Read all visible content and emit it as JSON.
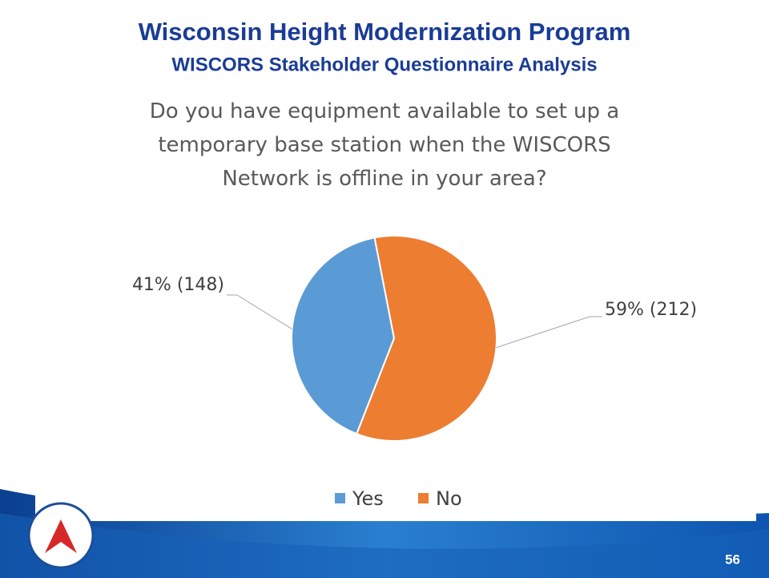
{
  "slide": {
    "title": "Wisconsin Height Modernization Program",
    "subtitle": "WISCORS Stakeholder Questionnaire Analysis",
    "page_number": "56"
  },
  "chart_data": {
    "type": "pie",
    "title": "Do you have equipment available to set up a temporary base station when the WISCORS Network is offline in your area?",
    "categories": [
      "Yes",
      "No"
    ],
    "values": [
      41,
      59
    ],
    "value_labels": [
      "41% (148)",
      "59% (212)"
    ],
    "colors": [
      "#5b9bd5",
      "#ed7d31"
    ],
    "legend": "bottom"
  }
}
